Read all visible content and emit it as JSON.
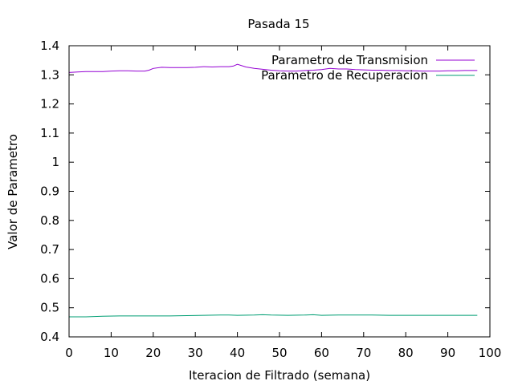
{
  "chart_data": {
    "type": "line",
    "title": "Pasada 15",
    "xlabel": "Iteracion de Filtrado (semana)",
    "ylabel": "Valor de Parametro",
    "xlim": [
      0,
      100
    ],
    "ylim": [
      0.4,
      1.4
    ],
    "xticks": [
      0,
      10,
      20,
      30,
      40,
      50,
      60,
      70,
      80,
      90,
      100
    ],
    "xtick_labels": [
      "0",
      "10",
      "20",
      "30",
      "40",
      "50",
      "60",
      "70",
      "80",
      "90",
      "100"
    ],
    "yticks": [
      0.4,
      0.5,
      0.6,
      0.7,
      0.8,
      0.9,
      1.0,
      1.1,
      1.2,
      1.3,
      1.4
    ],
    "ytick_labels": [
      "0.4",
      "0.5",
      "0.6",
      "0.7",
      "0.8",
      "0.9",
      "1",
      "1.1",
      "1.2",
      "1.3",
      "1.4"
    ],
    "grid": false,
    "legend_position": "top-right",
    "series": [
      {
        "name": "Parametro de Transmision",
        "color": "#9400d3",
        "x": [
          0,
          2,
          4,
          6,
          8,
          10,
          12,
          14,
          16,
          18,
          19,
          20,
          22,
          24,
          26,
          28,
          30,
          32,
          34,
          36,
          38,
          39,
          40,
          42,
          44,
          46,
          48,
          50,
          52,
          54,
          56,
          58,
          60,
          62,
          64,
          66,
          68,
          70,
          72,
          74,
          76,
          78,
          80,
          82,
          84,
          86,
          88,
          90,
          92,
          94,
          96,
          97
        ],
        "values": [
          1.308,
          1.31,
          1.311,
          1.311,
          1.311,
          1.313,
          1.314,
          1.314,
          1.313,
          1.313,
          1.316,
          1.322,
          1.326,
          1.325,
          1.325,
          1.325,
          1.326,
          1.328,
          1.327,
          1.328,
          1.328,
          1.33,
          1.336,
          1.327,
          1.322,
          1.319,
          1.316,
          1.314,
          1.313,
          1.313,
          1.315,
          1.316,
          1.318,
          1.322,
          1.32,
          1.32,
          1.318,
          1.317,
          1.316,
          1.316,
          1.315,
          1.315,
          1.314,
          1.314,
          1.313,
          1.313,
          1.313,
          1.314,
          1.314,
          1.315,
          1.315,
          1.315
        ]
      },
      {
        "name": "Parametro de Recuperacion",
        "color": "#009e73",
        "x": [
          0,
          4,
          8,
          12,
          16,
          20,
          24,
          28,
          32,
          36,
          38,
          40,
          44,
          46,
          48,
          52,
          56,
          58,
          60,
          64,
          68,
          72,
          76,
          80,
          84,
          88,
          92,
          96,
          97
        ],
        "values": [
          0.469,
          0.469,
          0.471,
          0.472,
          0.472,
          0.472,
          0.472,
          0.473,
          0.474,
          0.475,
          0.475,
          0.474,
          0.475,
          0.476,
          0.475,
          0.474,
          0.475,
          0.476,
          0.474,
          0.475,
          0.475,
          0.475,
          0.474,
          0.474,
          0.474,
          0.474,
          0.474,
          0.474,
          0.474
        ]
      }
    ]
  }
}
